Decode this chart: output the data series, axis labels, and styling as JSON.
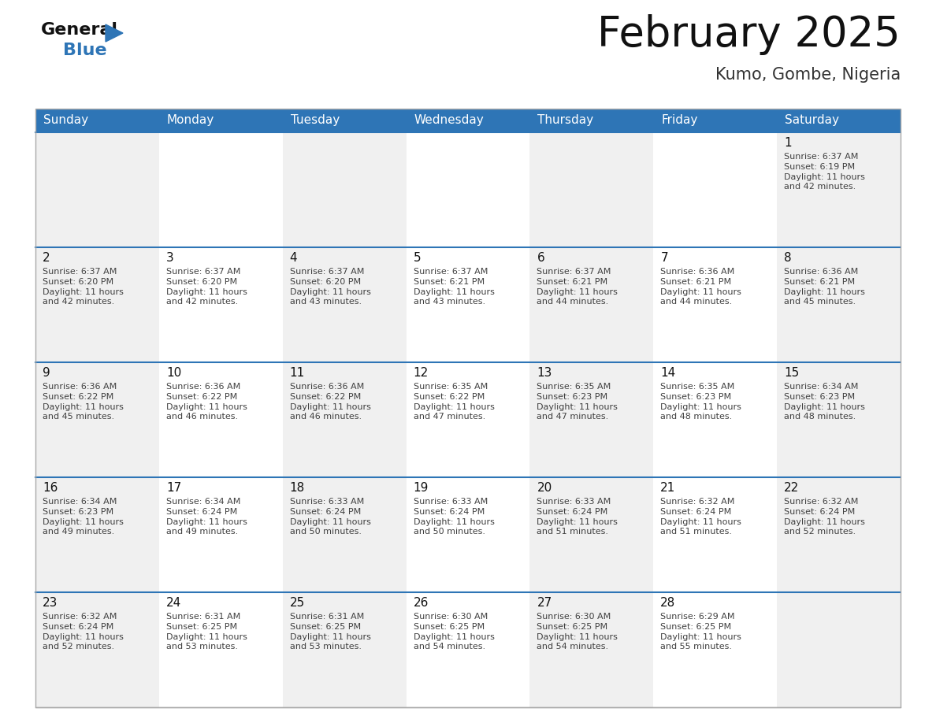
{
  "title": "February 2025",
  "subtitle": "Kumo, Gombe, Nigeria",
  "header_bg": "#2E75B6",
  "header_text_color": "#FFFFFF",
  "cell_bg": "#F0F0F0",
  "cell_bg_alt": "#FFFFFF",
  "info_text_color": "#404040",
  "border_color": "#2E75B6",
  "outer_border_color": "#AAAAAA",
  "days_of_week": [
    "Sunday",
    "Monday",
    "Tuesday",
    "Wednesday",
    "Thursday",
    "Friday",
    "Saturday"
  ],
  "weeks": [
    [
      null,
      null,
      null,
      null,
      null,
      null,
      {
        "day": "1",
        "sunrise": "6:37 AM",
        "sunset": "6:19 PM",
        "daylight": "11 hours\nand 42 minutes."
      }
    ],
    [
      {
        "day": "2",
        "sunrise": "6:37 AM",
        "sunset": "6:20 PM",
        "daylight": "11 hours\nand 42 minutes."
      },
      {
        "day": "3",
        "sunrise": "6:37 AM",
        "sunset": "6:20 PM",
        "daylight": "11 hours\nand 42 minutes."
      },
      {
        "day": "4",
        "sunrise": "6:37 AM",
        "sunset": "6:20 PM",
        "daylight": "11 hours\nand 43 minutes."
      },
      {
        "day": "5",
        "sunrise": "6:37 AM",
        "sunset": "6:21 PM",
        "daylight": "11 hours\nand 43 minutes."
      },
      {
        "day": "6",
        "sunrise": "6:37 AM",
        "sunset": "6:21 PM",
        "daylight": "11 hours\nand 44 minutes."
      },
      {
        "day": "7",
        "sunrise": "6:36 AM",
        "sunset": "6:21 PM",
        "daylight": "11 hours\nand 44 minutes."
      },
      {
        "day": "8",
        "sunrise": "6:36 AM",
        "sunset": "6:21 PM",
        "daylight": "11 hours\nand 45 minutes."
      }
    ],
    [
      {
        "day": "9",
        "sunrise": "6:36 AM",
        "sunset": "6:22 PM",
        "daylight": "11 hours\nand 45 minutes."
      },
      {
        "day": "10",
        "sunrise": "6:36 AM",
        "sunset": "6:22 PM",
        "daylight": "11 hours\nand 46 minutes."
      },
      {
        "day": "11",
        "sunrise": "6:36 AM",
        "sunset": "6:22 PM",
        "daylight": "11 hours\nand 46 minutes."
      },
      {
        "day": "12",
        "sunrise": "6:35 AM",
        "sunset": "6:22 PM",
        "daylight": "11 hours\nand 47 minutes."
      },
      {
        "day": "13",
        "sunrise": "6:35 AM",
        "sunset": "6:23 PM",
        "daylight": "11 hours\nand 47 minutes."
      },
      {
        "day": "14",
        "sunrise": "6:35 AM",
        "sunset": "6:23 PM",
        "daylight": "11 hours\nand 48 minutes."
      },
      {
        "day": "15",
        "sunrise": "6:34 AM",
        "sunset": "6:23 PM",
        "daylight": "11 hours\nand 48 minutes."
      }
    ],
    [
      {
        "day": "16",
        "sunrise": "6:34 AM",
        "sunset": "6:23 PM",
        "daylight": "11 hours\nand 49 minutes."
      },
      {
        "day": "17",
        "sunrise": "6:34 AM",
        "sunset": "6:24 PM",
        "daylight": "11 hours\nand 49 minutes."
      },
      {
        "day": "18",
        "sunrise": "6:33 AM",
        "sunset": "6:24 PM",
        "daylight": "11 hours\nand 50 minutes."
      },
      {
        "day": "19",
        "sunrise": "6:33 AM",
        "sunset": "6:24 PM",
        "daylight": "11 hours\nand 50 minutes."
      },
      {
        "day": "20",
        "sunrise": "6:33 AM",
        "sunset": "6:24 PM",
        "daylight": "11 hours\nand 51 minutes."
      },
      {
        "day": "21",
        "sunrise": "6:32 AM",
        "sunset": "6:24 PM",
        "daylight": "11 hours\nand 51 minutes."
      },
      {
        "day": "22",
        "sunrise": "6:32 AM",
        "sunset": "6:24 PM",
        "daylight": "11 hours\nand 52 minutes."
      }
    ],
    [
      {
        "day": "23",
        "sunrise": "6:32 AM",
        "sunset": "6:24 PM",
        "daylight": "11 hours\nand 52 minutes."
      },
      {
        "day": "24",
        "sunrise": "6:31 AM",
        "sunset": "6:25 PM",
        "daylight": "11 hours\nand 53 minutes."
      },
      {
        "day": "25",
        "sunrise": "6:31 AM",
        "sunset": "6:25 PM",
        "daylight": "11 hours\nand 53 minutes."
      },
      {
        "day": "26",
        "sunrise": "6:30 AM",
        "sunset": "6:25 PM",
        "daylight": "11 hours\nand 54 minutes."
      },
      {
        "day": "27",
        "sunrise": "6:30 AM",
        "sunset": "6:25 PM",
        "daylight": "11 hours\nand 54 minutes."
      },
      {
        "day": "28",
        "sunrise": "6:29 AM",
        "sunset": "6:25 PM",
        "daylight": "11 hours\nand 55 minutes."
      },
      null
    ]
  ],
  "title_fontsize": 38,
  "subtitle_fontsize": 15,
  "dow_fontsize": 11,
  "day_num_fontsize": 11,
  "info_fontsize": 8.0
}
